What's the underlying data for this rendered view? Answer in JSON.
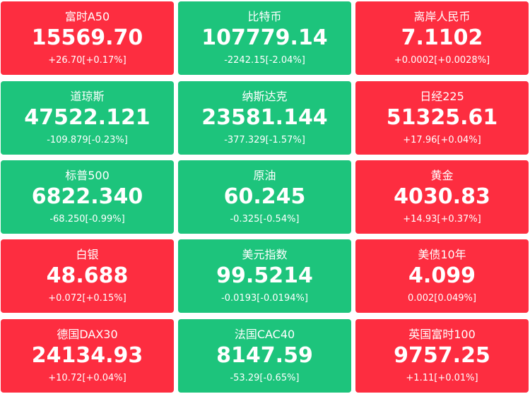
{
  "colors": {
    "up": "#fd2d40",
    "down": "#1dc47c",
    "text": "#ffffff"
  },
  "quotes": [
    {
      "name": "富时A50",
      "price": "15569.70",
      "change": "+26.70[+0.17%]",
      "direction": "up"
    },
    {
      "name": "比特币",
      "price": "107779.14",
      "change": "-2242.15[-2.04%]",
      "direction": "down"
    },
    {
      "name": "离岸人民币",
      "price": "7.1102",
      "change": "+0.0002[+0.0028%]",
      "direction": "up"
    },
    {
      "name": "道琼斯",
      "price": "47522.121",
      "change": "-109.879[-0.23%]",
      "direction": "down"
    },
    {
      "name": "纳斯达克",
      "price": "23581.144",
      "change": "-377.329[-1.57%]",
      "direction": "down"
    },
    {
      "name": "日经225",
      "price": "51325.61",
      "change": "+17.96[+0.04%]",
      "direction": "up"
    },
    {
      "name": "标普500",
      "price": "6822.340",
      "change": "-68.250[-0.99%]",
      "direction": "down"
    },
    {
      "name": "原油",
      "price": "60.245",
      "change": "-0.325[-0.54%]",
      "direction": "down"
    },
    {
      "name": "黄金",
      "price": "4030.83",
      "change": "+14.93[+0.37%]",
      "direction": "up"
    },
    {
      "name": "白银",
      "price": "48.688",
      "change": "+0.072[+0.15%]",
      "direction": "up"
    },
    {
      "name": "美元指数",
      "price": "99.5214",
      "change": "-0.0193[-0.0194%]",
      "direction": "down"
    },
    {
      "name": "美债10年",
      "price": "4.099",
      "change": "0.002[0.049%]",
      "direction": "up"
    },
    {
      "name": "德国DAX30",
      "price": "24134.93",
      "change": "+10.72[+0.04%]",
      "direction": "up"
    },
    {
      "name": "法国CAC40",
      "price": "8147.59",
      "change": "-53.29[-0.65%]",
      "direction": "down"
    },
    {
      "name": "英国富时100",
      "price": "9757.25",
      "change": "+1.11[+0.01%]",
      "direction": "up"
    }
  ]
}
